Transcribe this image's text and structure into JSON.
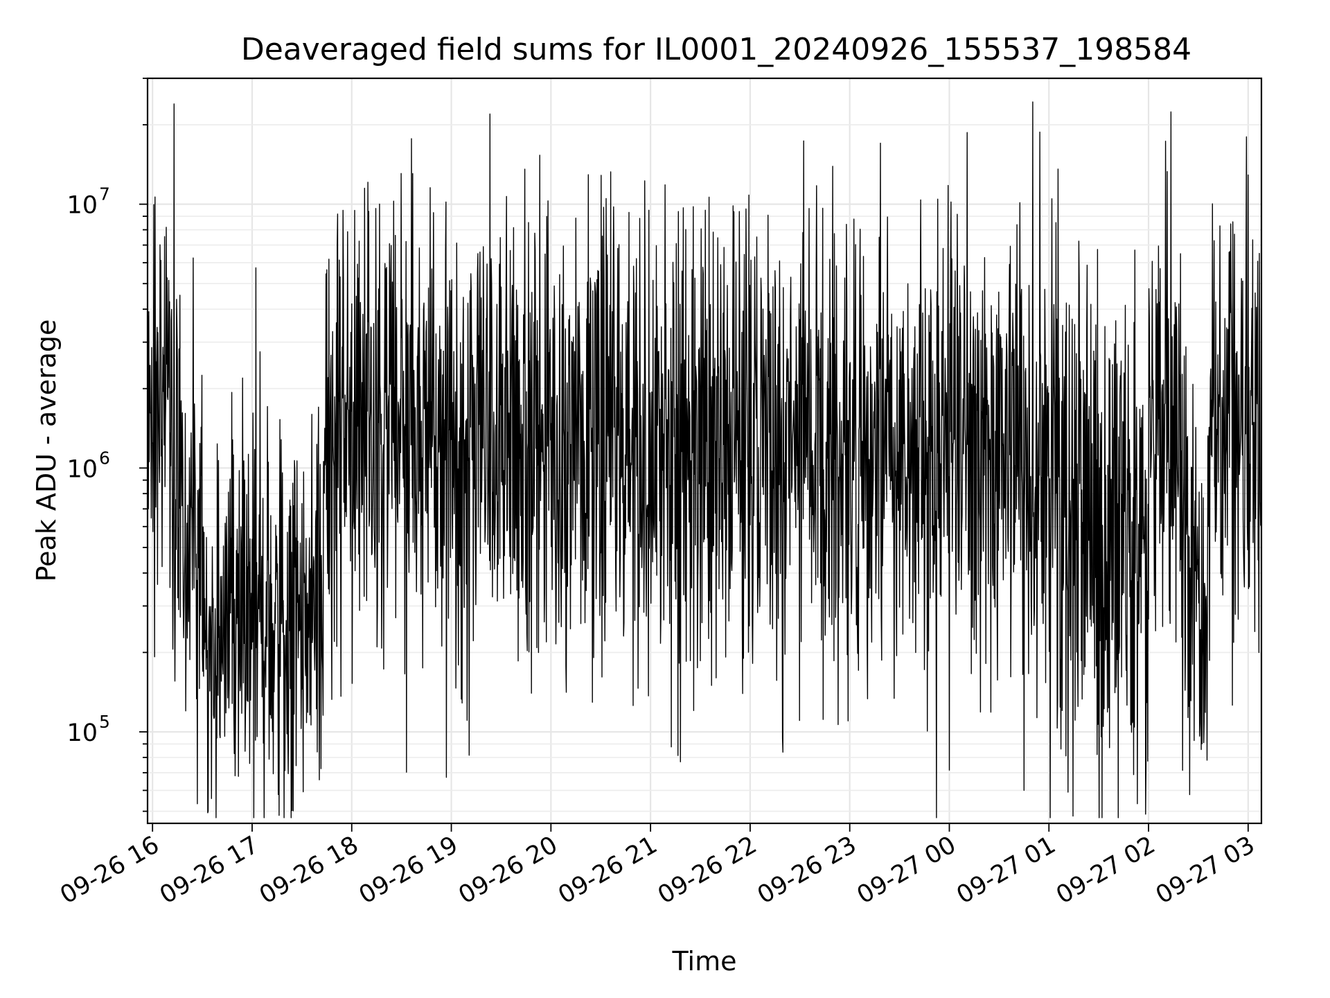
{
  "chart_data": {
    "type": "line",
    "title": "Deaveraged field sums for IL0001_20240926_155537_198584",
    "xlabel": "Time",
    "ylabel": "Peak ADU - average",
    "yscale": "log",
    "ylim": [
      45000,
      30000000
    ],
    "xlim": [
      "2024-09-26 15:57",
      "2024-09-27 03:08"
    ],
    "grid": true,
    "x_ticks": [
      {
        "value": "2024-09-26 16:00",
        "label": "09-26 16"
      },
      {
        "value": "2024-09-26 17:00",
        "label": "09-26 17"
      },
      {
        "value": "2024-09-26 18:00",
        "label": "09-26 18"
      },
      {
        "value": "2024-09-26 19:00",
        "label": "09-26 19"
      },
      {
        "value": "2024-09-26 20:00",
        "label": "09-26 20"
      },
      {
        "value": "2024-09-26 21:00",
        "label": "09-26 21"
      },
      {
        "value": "2024-09-26 22:00",
        "label": "09-26 22"
      },
      {
        "value": "2024-09-26 23:00",
        "label": "09-26 23"
      },
      {
        "value": "2024-09-27 00:00",
        "label": "09-27 00"
      },
      {
        "value": "2024-09-27 01:00",
        "label": "09-27 01"
      },
      {
        "value": "2024-09-27 02:00",
        "label": "09-27 02"
      },
      {
        "value": "2024-09-27 03:00",
        "label": "09-27 03"
      }
    ],
    "y_ticks": [
      {
        "value": 100000,
        "base": "10",
        "exp": "5"
      },
      {
        "value": 1000000,
        "base": "10",
        "exp": "6"
      },
      {
        "value": 10000000,
        "base": "10",
        "exp": "7"
      }
    ],
    "segments": [
      {
        "start": "2024-09-26 15:57",
        "end": "2024-09-26 16:12",
        "level": 1900000,
        "spread": 0.45
      },
      {
        "start": "2024-09-26 16:12",
        "end": "2024-09-26 16:30",
        "level": 700000,
        "spread": 0.55
      },
      {
        "start": "2024-09-26 16:30",
        "end": "2024-09-26 17:43",
        "level": 250000,
        "spread": 0.5
      },
      {
        "start": "2024-09-26 17:43",
        "end": "2024-09-27 00:45",
        "level": 1300000,
        "spread": 0.55
      },
      {
        "start": "2024-09-27 00:45",
        "end": "2024-09-27 01:30",
        "level": 900000,
        "spread": 0.65
      },
      {
        "start": "2024-09-27 01:30",
        "end": "2024-09-27 02:00",
        "level": 450000,
        "spread": 0.55
      },
      {
        "start": "2024-09-27 02:00",
        "end": "2024-09-27 02:20",
        "level": 1500000,
        "spread": 0.5
      },
      {
        "start": "2024-09-27 02:20",
        "end": "2024-09-27 02:37",
        "level": 380000,
        "spread": 0.5
      },
      {
        "start": "2024-09-27 02:37",
        "end": "2024-09-27 03:08",
        "level": 1500000,
        "spread": 0.45
      }
    ],
    "spikes": [
      {
        "x": "2024-09-26 16:13",
        "y": 24000000
      },
      {
        "x": "2024-09-26 17:53",
        "y": 5300000
      },
      {
        "x": "2024-09-26 20:02",
        "y": 4900000
      },
      {
        "x": "2024-09-26 20:24",
        "y": 4900000
      },
      {
        "x": "2024-09-26 21:04",
        "y": 4100000
      },
      {
        "x": "2024-09-26 21:18",
        "y": 77000
      },
      {
        "x": "2024-09-26 22:59",
        "y": 110000
      },
      {
        "x": "2024-09-27 00:45",
        "y": 60000
      },
      {
        "x": "2024-09-27 01:29",
        "y": 82000
      },
      {
        "x": "2024-09-27 02:07",
        "y": 5700000
      },
      {
        "x": "2024-09-27 02:59",
        "y": 18000000
      }
    ]
  }
}
